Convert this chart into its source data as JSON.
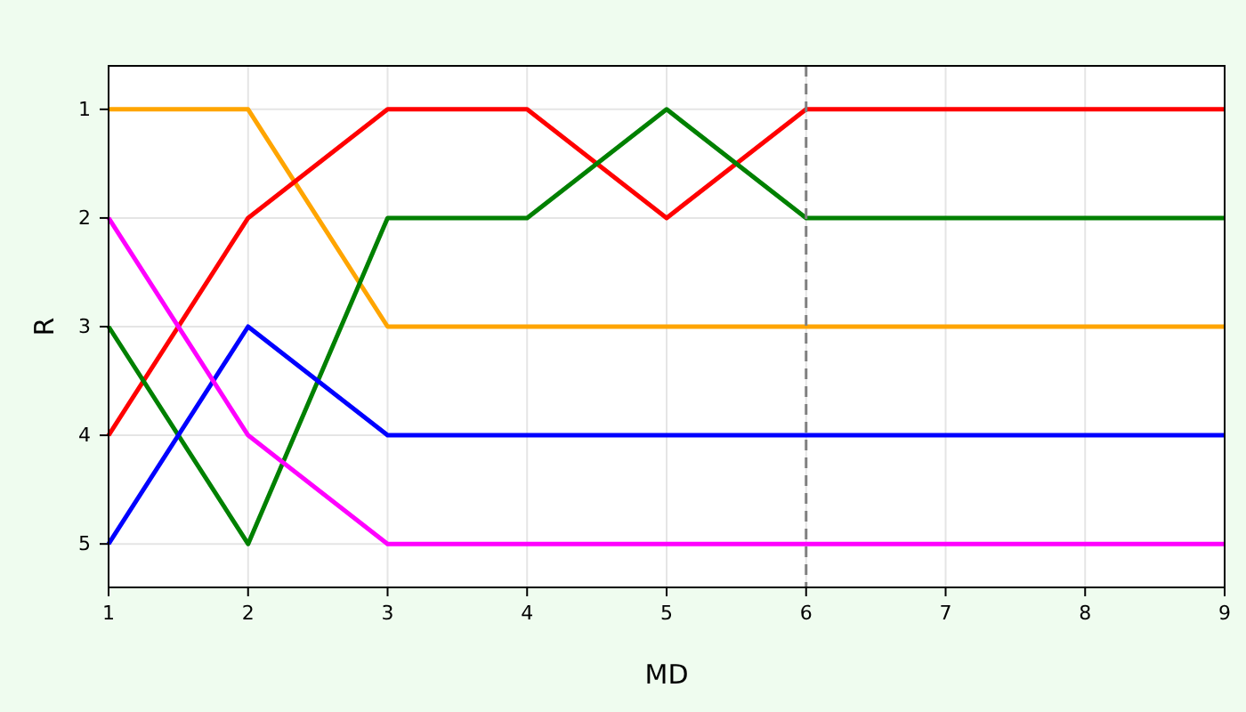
{
  "chart_data": {
    "type": "line",
    "xlabel": "MD",
    "ylabel": "R",
    "x": [
      1,
      2,
      3,
      4,
      5,
      6,
      7,
      8,
      9
    ],
    "series": [
      {
        "color": "#ffa500",
        "values": [
          1,
          1,
          3,
          3,
          3,
          3,
          3,
          3,
          3
        ]
      },
      {
        "color": "#ff0000",
        "values": [
          4,
          2,
          1,
          1,
          2,
          1,
          1,
          1,
          1
        ]
      },
      {
        "color": "#008000",
        "values": [
          3,
          5,
          2,
          2,
          1,
          2,
          2,
          2,
          2
        ]
      },
      {
        "color": "#0000ff",
        "values": [
          5,
          3,
          4,
          4,
          4,
          4,
          4,
          4,
          4
        ]
      },
      {
        "color": "#ff00ff",
        "values": [
          2,
          4,
          5,
          5,
          5,
          5,
          5,
          5,
          5
        ]
      }
    ],
    "xlim": [
      1,
      9
    ],
    "xticks": [
      1,
      2,
      3,
      4,
      5,
      6,
      7,
      8,
      9
    ],
    "ylim": [
      5.4,
      0.6
    ],
    "yticks": [
      1,
      2,
      3,
      4,
      5
    ],
    "grid": true,
    "line_style": "solid",
    "ref_lines": [
      {
        "axis": "x",
        "value": 6,
        "color": "#808080",
        "line_style": "dashed"
      }
    ]
  }
}
